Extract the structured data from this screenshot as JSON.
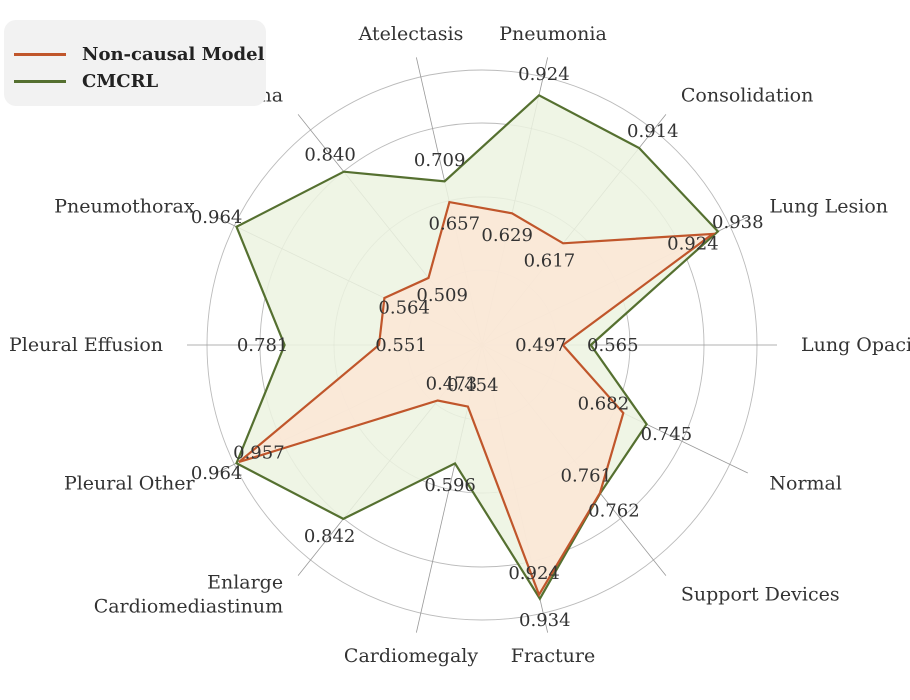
{
  "chart_data": {
    "type": "radar",
    "categories": [
      "Lung Opacity",
      "Lung Lesion",
      "Consolidation",
      "Pneumonia",
      "Atelectasis",
      "Edema",
      "Pneumothorax",
      "Pleural Effusion",
      "Pleural Other",
      "Enlarge Cardiomediastinum",
      "Cardiomegaly",
      "Fracture",
      "Support Devices",
      "Normal"
    ],
    "series": [
      {
        "name": "Non-causal Model",
        "color": "#c0562b",
        "fill": "#fbe6d6",
        "values": [
          0.497,
          0.924,
          0.617,
          0.629,
          0.657,
          0.509,
          0.564,
          0.551,
          0.957,
          0.473,
          0.454,
          0.924,
          0.761,
          0.682
        ]
      },
      {
        "name": "CMCRL",
        "color": "#557030",
        "fill": "#ecf3e1",
        "values": [
          0.565,
          0.938,
          0.914,
          0.924,
          0.709,
          0.84,
          0.964,
          0.781,
          0.964,
          0.842,
          0.596,
          0.934,
          0.762,
          0.745
        ]
      }
    ],
    "radial_range": [
      0.3,
      0.97
    ],
    "grid": true,
    "legend_position": "top-left"
  }
}
